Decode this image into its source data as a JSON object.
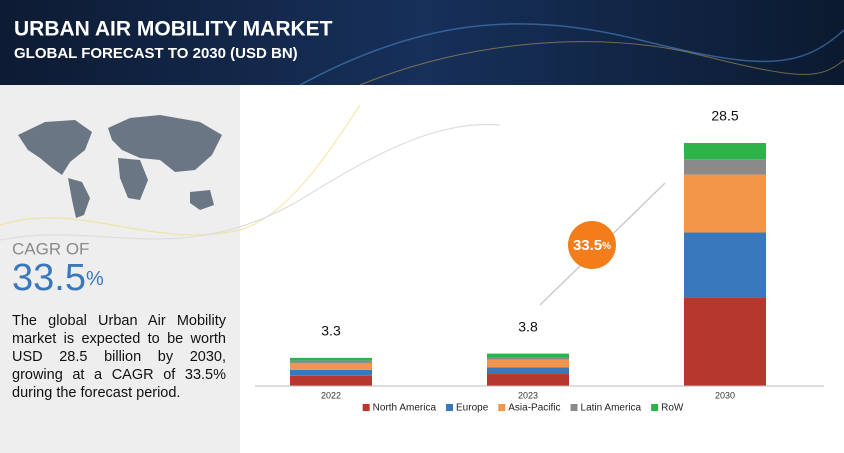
{
  "header": {
    "title": "URBAN AIR MOBILITY MARKET",
    "subtitle": "GLOBAL FORECAST TO 2030 (USD BN)"
  },
  "cagr": {
    "label": "CAGR OF",
    "value": "33.5",
    "unit": "%"
  },
  "description": "The global Urban Air Mobility market is expected to be worth USD 28.5 billion by 2030, growing at a CAGR of 33.5% during the forecast period.",
  "chart_data": {
    "type": "stacked_bar",
    "categories": [
      "2022",
      "2023",
      "2030"
    ],
    "totals": [
      3.3,
      3.8,
      28.5
    ],
    "series": [
      {
        "name": "North America",
        "color": "#b5372e",
        "values": [
          1.2,
          1.4,
          10.4
        ]
      },
      {
        "name": "Europe",
        "color": "#3a78bd",
        "values": [
          0.7,
          0.8,
          7.6
        ]
      },
      {
        "name": "Asia-Pacific",
        "color": "#f4964a",
        "values": [
          0.8,
          0.9,
          6.8
        ]
      },
      {
        "name": "Latin America",
        "color": "#8a8a8a",
        "values": [
          0.3,
          0.3,
          1.8
        ]
      },
      {
        "name": "RoW",
        "color": "#2db34a",
        "values": [
          0.3,
          0.4,
          1.9
        ]
      }
    ],
    "legend": "bottom"
  }
}
